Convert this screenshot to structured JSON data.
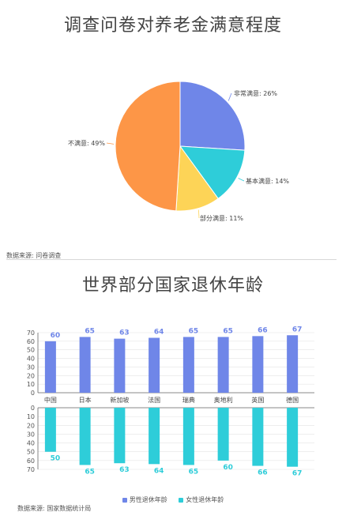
{
  "pie": {
    "title": "调查问卷对养老金满意程度",
    "source": "数据来源: 问卷调查",
    "chart_data": {
      "type": "pie",
      "slices": [
        {
          "label": "非常满意",
          "value": 26,
          "display": "非常满意: 26%",
          "color": "#6f86e8"
        },
        {
          "label": "基本满意",
          "value": 14,
          "display": "基本满意: 14%",
          "color": "#2ecdd9"
        },
        {
          "label": "部分满意",
          "value": 11,
          "display": "部分满意: 11%",
          "color": "#fdd457"
        },
        {
          "label": "不满意",
          "value": 49,
          "display": "不满意: 49%",
          "color": "#fd9647"
        }
      ]
    }
  },
  "bars": {
    "title": "世界部分国家退休年龄",
    "source": "数据来源: 国家数据统计局",
    "chart_data": {
      "type": "bar",
      "categories": [
        "中国",
        "日本",
        "新加坡",
        "法国",
        "瑞典",
        "奥地利",
        "英国",
        "德国"
      ],
      "series": [
        {
          "name": "男性退休年龄",
          "values": [
            60,
            65,
            63,
            64,
            65,
            65,
            66,
            67
          ],
          "color": "#6f86e8"
        },
        {
          "name": "女性退休年龄",
          "values": [
            50,
            65,
            63,
            64,
            65,
            60,
            66,
            67
          ],
          "color": "#2ecdd9"
        }
      ],
      "ylim": [
        0,
        70
      ],
      "yticks": [
        "0",
        "10",
        "20",
        "30",
        "40",
        "50",
        "60",
        "70"
      ]
    }
  }
}
